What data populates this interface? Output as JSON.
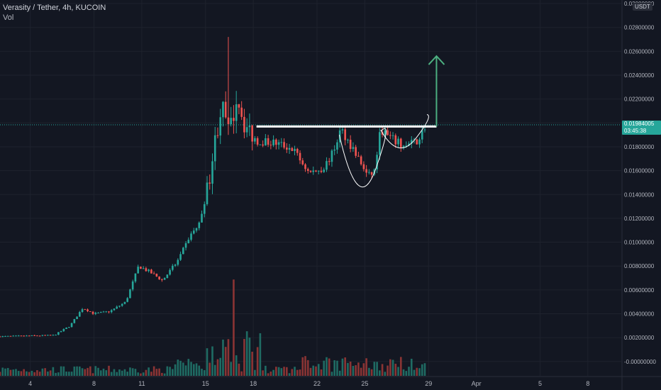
{
  "legend": {
    "symbol": "Verasity / Tether, 4h, KUCOIN",
    "indicator": "Vol"
  },
  "currency_badge": "USDT",
  "current_price": {
    "value": "0.01984005",
    "countdown": "03:45:38",
    "price": 0.01984005
  },
  "colors": {
    "background": "#131722",
    "up": "#26a69a",
    "down": "#ef5350",
    "vol_up": "#1f6b63",
    "vol_down": "#8a3434",
    "grid": "#1e222d",
    "axis_text": "#b2b5be",
    "arrow": "#4caf80",
    "drawing": "#ffffff"
  },
  "chart_data": {
    "type": "candlestick",
    "title": "",
    "y_axis": {
      "unit": "USDT",
      "ylim": [
        -0.0012,
        0.0303
      ],
      "ticks": [
        "0.03000000",
        "0.02800000",
        "0.02600000",
        "0.02400000",
        "0.02200000",
        "0.02000000",
        "0.01800000",
        "0.01600000",
        "0.01400000",
        "0.01200000",
        "0.01000000",
        "0.00800000",
        "0.00600000",
        "0.00400000",
        "0.00200000",
        "-0.00000000"
      ],
      "tick_values": [
        0.03,
        0.028,
        0.026,
        0.024,
        0.022,
        0.02,
        0.018,
        0.016,
        0.014,
        0.012,
        0.01,
        0.008,
        0.006,
        0.004,
        0.002,
        0.0
      ]
    },
    "x_axis": {
      "ticks": [
        "4",
        "8",
        "11",
        "15",
        "18",
        "22",
        "25",
        "29",
        "Apr",
        "5",
        "8"
      ],
      "tick_positions_day": [
        4,
        8,
        11,
        15,
        18,
        22,
        25,
        29,
        32,
        36,
        39
      ],
      "xlim_day": [
        2.1,
        41.1
      ]
    },
    "grid": true,
    "anchor_points": [
      [
        2.1,
        0.0021
      ],
      [
        5.5,
        0.0022
      ],
      [
        6.5,
        0.003
      ],
      [
        7.3,
        0.0045
      ],
      [
        8.0,
        0.004
      ],
      [
        9.0,
        0.0042
      ],
      [
        10.0,
        0.005
      ],
      [
        10.8,
        0.008
      ],
      [
        11.5,
        0.0075
      ],
      [
        12.3,
        0.0068
      ],
      [
        13.3,
        0.0085
      ],
      [
        14.0,
        0.0105
      ],
      [
        14.6,
        0.0115
      ],
      [
        15.2,
        0.015
      ],
      [
        15.6,
        0.0185
      ],
      [
        16.0,
        0.0215
      ],
      [
        16.5,
        0.019
      ],
      [
        17.0,
        0.0225
      ],
      [
        17.4,
        0.02
      ],
      [
        18.2,
        0.0185
      ],
      [
        19.5,
        0.0183
      ],
      [
        20.5,
        0.0178
      ],
      [
        21.5,
        0.0158
      ],
      [
        22.4,
        0.0162
      ],
      [
        23.0,
        0.0175
      ],
      [
        23.5,
        0.0195
      ],
      [
        24.4,
        0.0175
      ],
      [
        25.2,
        0.0155
      ],
      [
        25.6,
        0.016
      ],
      [
        26.0,
        0.0195
      ],
      [
        26.5,
        0.0188
      ],
      [
        27.5,
        0.018
      ],
      [
        28.3,
        0.0185
      ],
      [
        28.8,
        0.0197
      ]
    ],
    "candle_interval_hours": 4,
    "volume": {
      "note": "Volume histogram rendered at the bottom of the pane, tallest bar near day 16.9"
    }
  },
  "annotations": {
    "resistance_line_price": 0.0197,
    "resistance_line_days": [
      18.2,
      29.5
    ],
    "cup_handle_curves": true,
    "target_arrow": {
      "day": 29.5,
      "from_price": 0.0197,
      "to_price": 0.0256
    }
  }
}
